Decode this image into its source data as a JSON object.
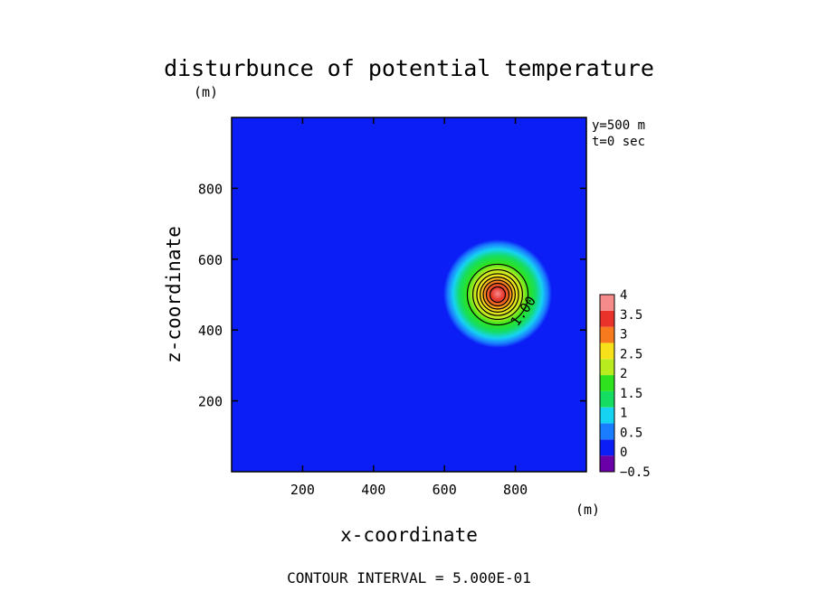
{
  "chart_data": {
    "type": "heatmap",
    "title": "disturbunce of potential temperature",
    "xlabel": "x-coordinate",
    "ylabel": "z-coordinate",
    "x_unit": "(m)",
    "y_unit": "(m)",
    "xlim": [
      0,
      1000
    ],
    "ylim": [
      0,
      1000
    ],
    "xticks": [
      200,
      400,
      600,
      800
    ],
    "yticks": [
      200,
      400,
      600,
      800
    ],
    "annotations": [
      "y=500 m",
      "t=0 sec"
    ],
    "footer": "CONTOUR INTERVAL = 5.000E-01",
    "field": {
      "shape": "gaussian bubble",
      "center_x": 750,
      "center_z": 500,
      "peak": 4,
      "contour_interval": 0.5,
      "contour_label": "1.00"
    },
    "colorbar": {
      "levels": [
        -0.5,
        0,
        0.5,
        1,
        1.5,
        2,
        2.5,
        3,
        3.5,
        4
      ],
      "tick_labels": [
        "4",
        "3.5",
        "3",
        "2.5",
        "2",
        "1.5",
        "1",
        "0.5",
        "0",
        "−0.5"
      ],
      "colors": [
        "#6a00a8",
        "#0a1ef5",
        "#1a7cff",
        "#16d3f2",
        "#15dd62",
        "#2ee31e",
        "#b9ec1f",
        "#f7e11a",
        "#f77b1e",
        "#e8322a",
        "#f58b8b"
      ]
    }
  }
}
